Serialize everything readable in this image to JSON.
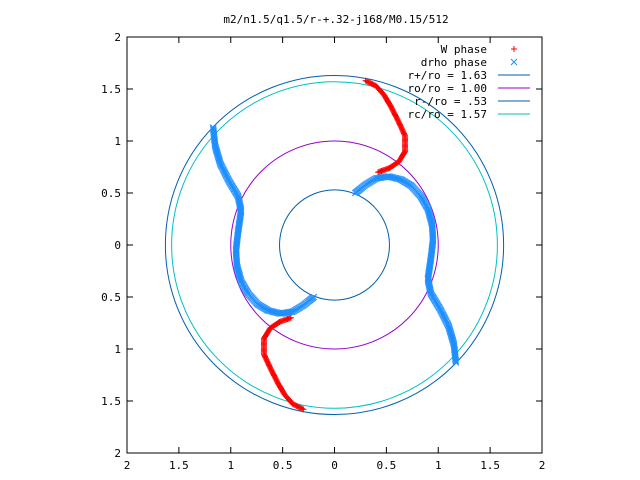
{
  "chart_data": {
    "type": "scatter",
    "title": "m2/n1.5/q1.5/r-+.32-j168/M0.15/512",
    "xlabel": "",
    "ylabel": "",
    "xlim": [
      -2,
      2
    ],
    "ylim": [
      -2,
      2
    ],
    "x_tick_labels": [
      "2",
      "1.5",
      "1",
      "0.5",
      "0",
      "0.5",
      "1",
      "1.5",
      "2"
    ],
    "y_tick_labels": [
      "2",
      "1.5",
      "1",
      "0.5",
      "0",
      "0.5",
      "1",
      "1.5",
      "2"
    ],
    "grid": false,
    "legend_position": "top-right",
    "series": [
      {
        "name": "W phase",
        "marker": "plus",
        "color": "#ff0000",
        "arms": [
          [
            [
              0.3,
              1.58
            ],
            [
              0.4,
              1.53
            ],
            [
              0.48,
              1.44
            ],
            [
              0.55,
              1.32
            ],
            [
              0.62,
              1.18
            ],
            [
              0.68,
              1.05
            ],
            [
              0.68,
              0.9
            ],
            [
              0.62,
              0.8
            ],
            [
              0.53,
              0.74
            ],
            [
              0.42,
              0.7
            ]
          ],
          [
            [
              -0.3,
              -1.58
            ],
            [
              -0.4,
              -1.53
            ],
            [
              -0.48,
              -1.44
            ],
            [
              -0.55,
              -1.32
            ],
            [
              -0.62,
              -1.18
            ],
            [
              -0.68,
              -1.05
            ],
            [
              -0.68,
              -0.9
            ],
            [
              -0.62,
              -0.8
            ],
            [
              -0.53,
              -0.74
            ],
            [
              -0.42,
              -0.7
            ]
          ]
        ]
      },
      {
        "name": "drho phase",
        "marker": "cross",
        "color": "#1f8fff",
        "arms": [
          [
            [
              0.2,
              0.5
            ],
            [
              0.3,
              0.58
            ],
            [
              0.4,
              0.64
            ],
            [
              0.52,
              0.66
            ],
            [
              0.64,
              0.63
            ],
            [
              0.74,
              0.57
            ],
            [
              0.83,
              0.47
            ],
            [
              0.9,
              0.35
            ],
            [
              0.94,
              0.2
            ],
            [
              0.95,
              0.05
            ],
            [
              0.93,
              -0.12
            ],
            [
              0.9,
              -0.33
            ],
            [
              0.93,
              -0.47
            ],
            [
              1.02,
              -0.62
            ],
            [
              1.1,
              -0.78
            ],
            [
              1.15,
              -0.95
            ],
            [
              1.17,
              -1.13
            ]
          ],
          [
            [
              -0.2,
              -0.5
            ],
            [
              -0.3,
              -0.58
            ],
            [
              -0.4,
              -0.64
            ],
            [
              -0.52,
              -0.66
            ],
            [
              -0.64,
              -0.63
            ],
            [
              -0.74,
              -0.57
            ],
            [
              -0.83,
              -0.47
            ],
            [
              -0.9,
              -0.35
            ],
            [
              -0.94,
              -0.2
            ],
            [
              -0.95,
              -0.05
            ],
            [
              -0.93,
              0.12
            ],
            [
              -0.9,
              0.33
            ],
            [
              -0.93,
              0.47
            ],
            [
              -1.02,
              0.62
            ],
            [
              -1.1,
              0.78
            ],
            [
              -1.15,
              0.95
            ],
            [
              -1.17,
              1.13
            ]
          ]
        ]
      },
      {
        "name": "r+/ro = 1.63",
        "type": "circle",
        "radius": 1.63,
        "color": "#0060ad"
      },
      {
        "name": "ro/ro = 1.00",
        "type": "circle",
        "radius": 1.0,
        "color": "#9400d3"
      },
      {
        "name": "r-/ro = .53",
        "type": "circle",
        "radius": 0.53,
        "color": "#0060ad"
      },
      {
        "name": "rc/ro = 1.57",
        "type": "circle",
        "radius": 1.57,
        "color": "#00c0c0"
      }
    ]
  }
}
